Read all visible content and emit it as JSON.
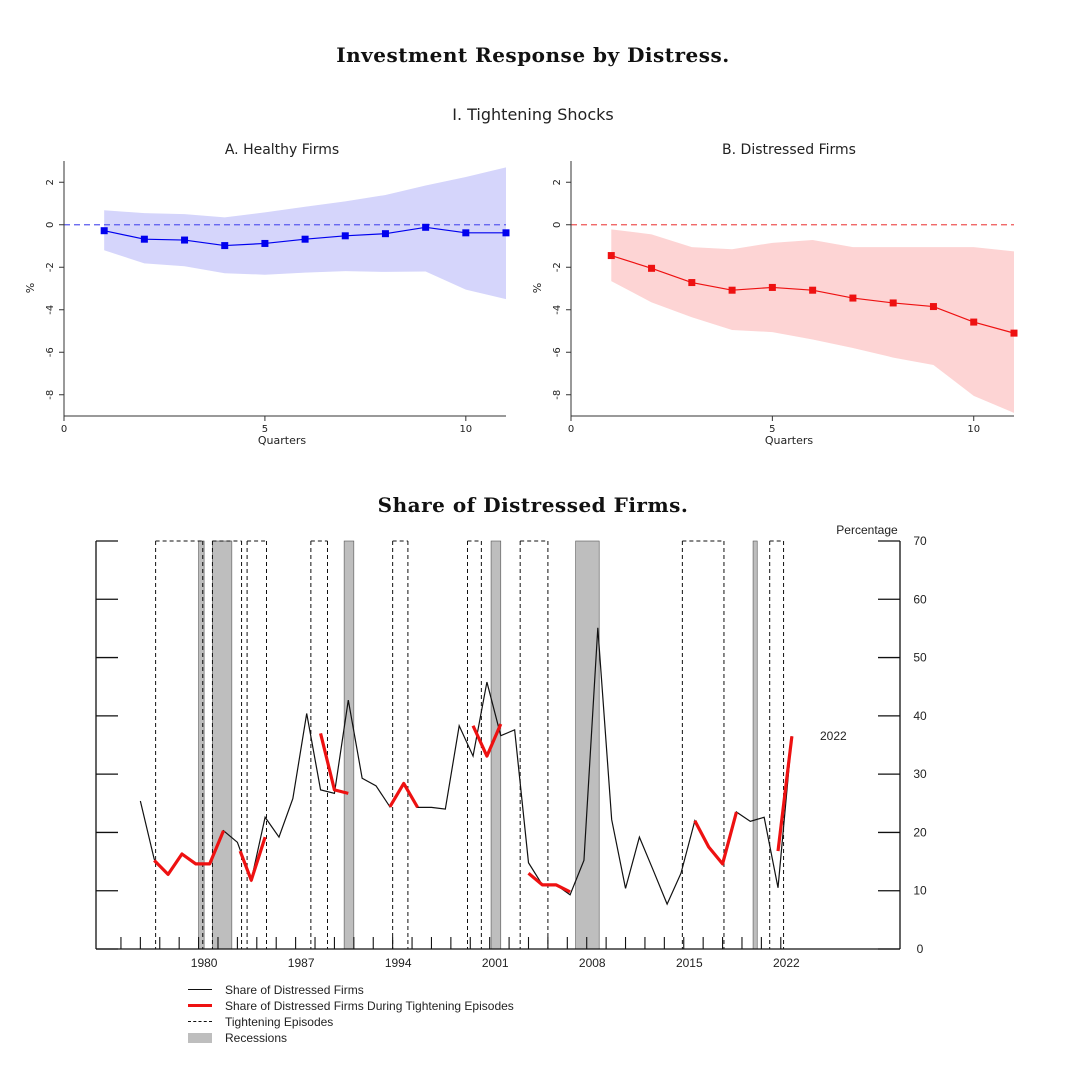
{
  "figure": {
    "title": "Investment Response by Distress.",
    "section_title": "I. Tightening Shocks",
    "bottom_title": "Share of Distressed Firms."
  },
  "chart_data": [
    {
      "type": "line",
      "title": "A. Healthy Firms",
      "xlabel": "Quarters",
      "ylabel": "%",
      "xlim": [
        0,
        11
      ],
      "ylim": [
        -9,
        3
      ],
      "xticks": [
        0,
        5,
        10
      ],
      "yticks": [
        2,
        0,
        -2,
        -4,
        -6,
        -8
      ],
      "ytick_labels": [
        "2",
        "0",
        "-2",
        "-4",
        "-6",
        "-8"
      ],
      "reference_line": 0,
      "color": "#0000ee",
      "band_color": "#d5d5fb",
      "ref_color": "#5a5aee",
      "x": [
        1,
        2,
        3,
        4,
        5,
        6,
        7,
        8,
        9,
        10,
        11
      ],
      "y": [
        -0.28,
        -0.68,
        -0.72,
        -0.98,
        -0.88,
        -0.68,
        -0.52,
        -0.42,
        -0.12,
        -0.38,
        -0.38
      ],
      "upper": [
        0.68,
        0.55,
        0.5,
        0.35,
        0.58,
        0.85,
        1.1,
        1.4,
        1.85,
        2.25,
        2.7
      ],
      "lower": [
        -1.2,
        -1.82,
        -1.95,
        -2.28,
        -2.35,
        -2.25,
        -2.18,
        -2.22,
        -2.2,
        -3.05,
        -3.5
      ]
    },
    {
      "type": "line",
      "title": "B. Distressed Firms",
      "xlabel": "Quarters",
      "ylabel": "%",
      "xlim": [
        0,
        11
      ],
      "ylim": [
        -9,
        3
      ],
      "xticks": [
        0,
        5,
        10
      ],
      "yticks": [
        2,
        0,
        -2,
        -4,
        -6,
        -8
      ],
      "ytick_labels": [
        "2",
        "0",
        "-2",
        "-4",
        "-6",
        "-8"
      ],
      "reference_line": 0,
      "color": "#ee1111",
      "band_color": "#fdd4d4",
      "ref_color": "#ee5555",
      "x": [
        1,
        2,
        3,
        4,
        5,
        6,
        7,
        8,
        9,
        10,
        11
      ],
      "y": [
        -1.45,
        -2.05,
        -2.72,
        -3.08,
        -2.95,
        -3.08,
        -3.45,
        -3.68,
        -3.85,
        -4.58,
        -5.1
      ],
      "upper": [
        -0.22,
        -0.45,
        -1.05,
        -1.15,
        -0.85,
        -0.72,
        -1.05,
        -1.05,
        -1.05,
        -1.05,
        -1.25
      ],
      "lower": [
        -2.65,
        -3.65,
        -4.35,
        -4.95,
        -5.05,
        -5.4,
        -5.8,
        -6.25,
        -6.6,
        -8.05,
        -8.85
      ]
    },
    {
      "type": "line",
      "title": "Share of Distressed Firms.",
      "ylabel": "Percentage",
      "ylim": [
        0,
        70
      ],
      "xlim": [
        1972.2,
        2030.2
      ],
      "yticks": [
        0,
        10,
        20,
        30,
        40,
        50,
        60,
        70
      ],
      "ytick_labels": [
        "0",
        "10",
        "20",
        "30",
        "40",
        "50",
        "60",
        "70"
      ],
      "xticks": [
        1980,
        1987,
        1994,
        2001,
        2008,
        2015,
        2022
      ],
      "xtick_labels": [
        "1980",
        "1987",
        "1994",
        "2001",
        "2008",
        "2015",
        "2022"
      ],
      "annotation": "2022",
      "annotation_point": [
        2023.2,
        36.5
      ],
      "series": [
        {
          "name": "Share of Distressed Firms",
          "color": "#111111",
          "x": [
            1975.4,
            1976.4,
            1977.4,
            1978.4,
            1979.4,
            1980.4,
            1981.4,
            1982.4,
            1983.4,
            1984.4,
            1985.4,
            1986.4,
            1987.4,
            1988.4,
            1989.4,
            1990.4,
            1991.4,
            1992.4,
            1993.4,
            1994.4,
            1995.4,
            1996.4,
            1997.4,
            1998.4,
            1999.4,
            2000.4,
            2001.4,
            2002.4,
            2003.4,
            2004.4,
            2005.4,
            2006.4,
            2007.4,
            2008.4,
            2009.4,
            2010.4,
            2011.4,
            2012.4,
            2013.4,
            2014.4,
            2015.4,
            2016.4,
            2017.4,
            2018.4,
            2019.4,
            2020.4,
            2021.4,
            2022.4
          ],
          "y": [
            25.4,
            15.4,
            12.8,
            16.3,
            14.6,
            14.6,
            20.3,
            18.3,
            11.8,
            22.6,
            19.2,
            25.8,
            40.4,
            27.3,
            26.7,
            42.7,
            29.3,
            28.0,
            24.4,
            28.4,
            24.3,
            24.3,
            24.0,
            38.3,
            33.1,
            45.8,
            36.6,
            37.6,
            14.8,
            11.0,
            11.0,
            9.3,
            15.2,
            55.1,
            22.2,
            10.4,
            19.2,
            13.5,
            7.7,
            13.0,
            22.0,
            17.5,
            14.6,
            23.5,
            21.9,
            22.6,
            10.5,
            36.5
          ]
        },
        {
          "name": "Share of Distressed Firms During Tightening Episodes",
          "color": "#ee1111",
          "segments": [
            {
              "x": [
                1976.4,
                1977.4,
                1978.4,
                1979.4,
                1980.4,
                1981.4
              ],
              "y": [
                15.2,
                12.8,
                16.3,
                14.6,
                14.6,
                20.3
              ]
            },
            {
              "x": [
                1982.6,
                1983.4,
                1984.4
              ],
              "y": [
                16.8,
                11.8,
                19.2
              ]
            },
            {
              "x": [
                1988.4,
                1989.4,
                1990.4
              ],
              "y": [
                37.0,
                27.3,
                26.7
              ]
            },
            {
              "x": [
                1993.4,
                1994.4,
                1995.4
              ],
              "y": [
                24.4,
                28.4,
                24.3
              ]
            },
            {
              "x": [
                1999.4,
                2000.4,
                2001.4
              ],
              "y": [
                38.3,
                33.1,
                38.6
              ]
            },
            {
              "x": [
                2003.4,
                2004.4,
                2005.4,
                2006.4
              ],
              "y": [
                13.0,
                11.0,
                11.0,
                9.8
              ]
            },
            {
              "x": [
                2015.4,
                2016.4,
                2017.4,
                2018.4
              ],
              "y": [
                22.0,
                17.5,
                14.6,
                23.5
              ]
            },
            {
              "x": [
                2021.4,
                2022.4
              ],
              "y": [
                16.8,
                36.5
              ]
            }
          ]
        },
        {
          "name": "Tightening Episodes",
          "style": "dashed",
          "episodes": [
            [
              1976.5,
              1979.9
            ],
            [
              1980.6,
              1982.7
            ],
            [
              1983.1,
              1984.5
            ],
            [
              1987.7,
              1988.9
            ],
            [
              1993.6,
              1994.7
            ],
            [
              1999.0,
              2000.0
            ],
            [
              2002.8,
              2004.8
            ],
            [
              2014.5,
              2017.5
            ],
            [
              2020.8,
              2021.8
            ]
          ]
        },
        {
          "name": "Recessions",
          "color": "#bebebe",
          "periods": [
            [
              1979.6,
              1980.0
            ],
            [
              1980.6,
              1982.0
            ],
            [
              1990.1,
              1990.8
            ],
            [
              2000.7,
              2001.4
            ],
            [
              2006.8,
              2008.5
            ],
            [
              2019.6,
              2019.9
            ]
          ]
        }
      ],
      "legend": [
        "Share of Distressed Firms",
        "Share of Distressed Firms During Tightening Episodes",
        "Tightening Episodes",
        "Recessions"
      ],
      "legend_position": "bottom-left"
    }
  ]
}
